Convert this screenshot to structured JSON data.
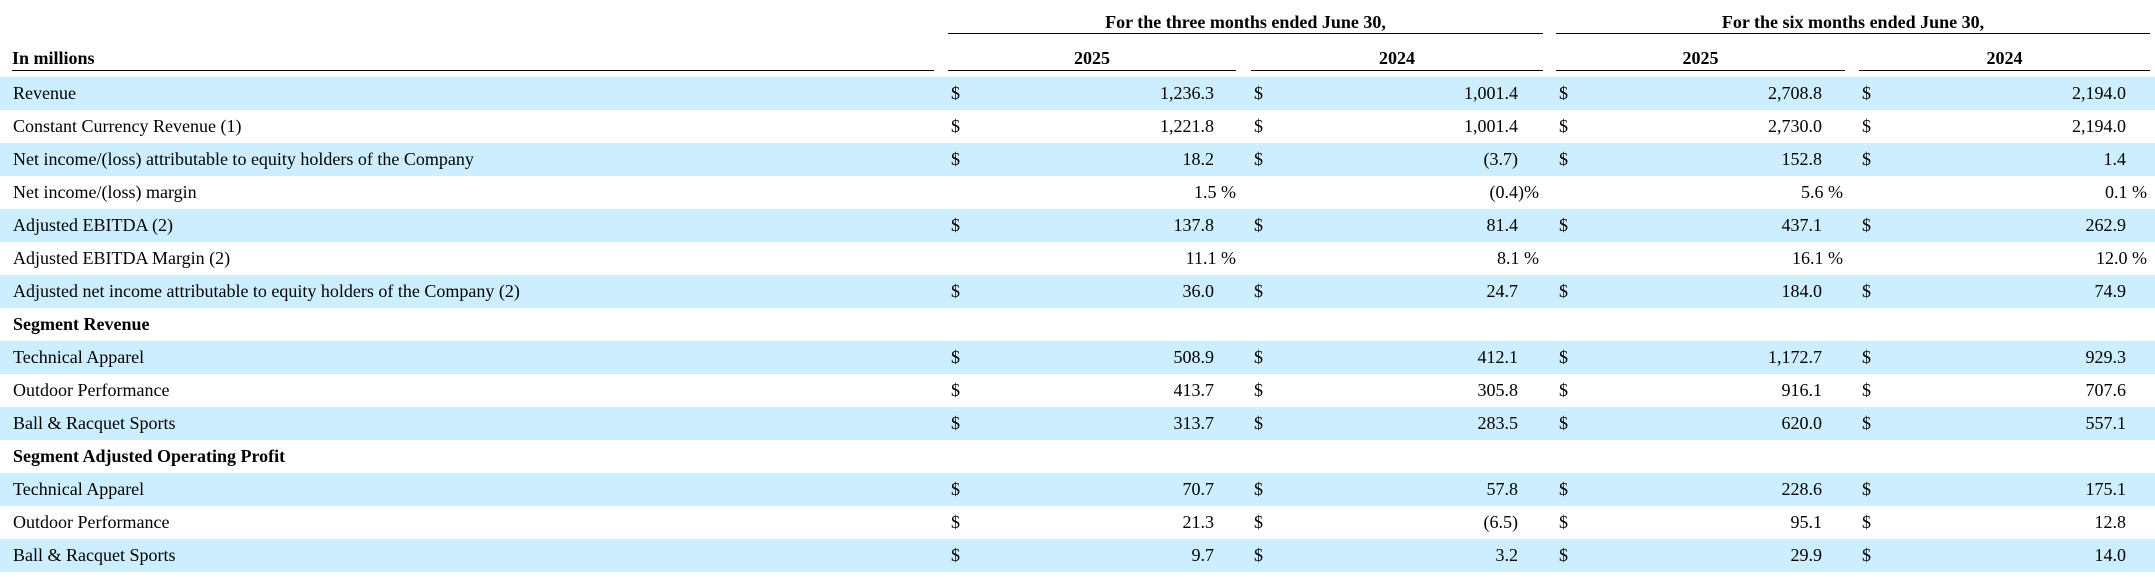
{
  "header": {
    "in_millions": "In millions",
    "group_three_months": "For the three months ended June 30,",
    "group_six_months": "For the six months ended June 30,",
    "years": [
      "2025",
      "2024",
      "2025",
      "2024"
    ]
  },
  "currency_symbol": "$",
  "rows": [
    {
      "label": "Revenue",
      "shade": true,
      "currency": true,
      "values": [
        "1,236.3",
        "1,001.4",
        "2,708.8",
        "2,194.0"
      ]
    },
    {
      "label": "Constant Currency Revenue (1)",
      "shade": false,
      "currency": true,
      "values": [
        "1,221.8",
        "1,001.4",
        "2,730.0",
        "2,194.0"
      ]
    },
    {
      "label": "Net income/(loss) attributable to equity holders of the Company",
      "shade": true,
      "currency": true,
      "values": [
        "18.2",
        "(3.7)",
        "152.8",
        "1.4"
      ]
    },
    {
      "label": "Net income/(loss) margin",
      "shade": false,
      "currency": false,
      "percent": true,
      "values": [
        "1.5 %",
        "(0.4)%",
        "5.6 %",
        "0.1 %"
      ]
    },
    {
      "label": "Adjusted EBITDA (2)",
      "shade": true,
      "currency": true,
      "values": [
        "137.8",
        "81.4",
        "437.1",
        "262.9"
      ]
    },
    {
      "label": "Adjusted EBITDA Margin (2)",
      "shade": false,
      "currency": false,
      "percent": true,
      "values": [
        "11.1 %",
        "8.1 %",
        "16.1 %",
        "12.0 %"
      ]
    },
    {
      "label": "Adjusted net income attributable to equity holders of the Company (2)",
      "shade": true,
      "currency": true,
      "values": [
        "36.0",
        "24.7",
        "184.0",
        "74.9"
      ]
    },
    {
      "label": "Segment Revenue",
      "shade": false,
      "section": true,
      "values": []
    },
    {
      "label": "Technical Apparel",
      "shade": true,
      "currency": true,
      "values": [
        "508.9",
        "412.1",
        "1,172.7",
        "929.3"
      ]
    },
    {
      "label": "Outdoor Performance",
      "shade": false,
      "currency": true,
      "values": [
        "413.7",
        "305.8",
        "916.1",
        "707.6"
      ]
    },
    {
      "label": "Ball & Racquet Sports",
      "shade": true,
      "currency": true,
      "values": [
        "313.7",
        "283.5",
        "620.0",
        "557.1"
      ]
    },
    {
      "label": "Segment Adjusted Operating Profit",
      "shade": false,
      "section": true,
      "values": []
    },
    {
      "label": "Technical Apparel",
      "shade": true,
      "currency": true,
      "values": [
        "70.7",
        "57.8",
        "228.6",
        "175.1"
      ]
    },
    {
      "label": "Outdoor Performance",
      "shade": false,
      "currency": true,
      "values": [
        "21.3",
        "(6.5)",
        "95.1",
        "12.8"
      ]
    },
    {
      "label": "Ball & Racquet Sports",
      "shade": true,
      "currency": true,
      "values": [
        "9.7",
        "3.2",
        "29.9",
        "14.0"
      ]
    }
  ],
  "colors": {
    "row_shade": "#cceeff",
    "rule": "#000000"
  }
}
